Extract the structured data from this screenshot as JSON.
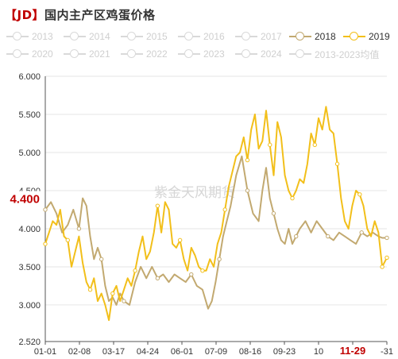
{
  "title_bracket": "【JD】",
  "title_text": "国内主产区鸡蛋价格",
  "legend": [
    {
      "label": "2013",
      "active": false,
      "color": "#d9d9d9"
    },
    {
      "label": "2014",
      "active": false,
      "color": "#d9d9d9"
    },
    {
      "label": "2015",
      "active": false,
      "color": "#d9d9d9"
    },
    {
      "label": "2016",
      "active": false,
      "color": "#d9d9d9"
    },
    {
      "label": "2017",
      "active": false,
      "color": "#d9d9d9"
    },
    {
      "label": "2018",
      "active": true,
      "color": "#c2a970"
    },
    {
      "label": "2019",
      "active": true,
      "color": "#f2bf1a"
    },
    {
      "label": "2020",
      "active": false,
      "color": "#d9d9d9"
    },
    {
      "label": "2021",
      "active": false,
      "color": "#d9d9d9"
    },
    {
      "label": "2022",
      "active": false,
      "color": "#d9d9d9"
    },
    {
      "label": "2023",
      "active": false,
      "color": "#d9d9d9"
    },
    {
      "label": "2024",
      "active": false,
      "color": "#d9d9d9"
    },
    {
      "label": "2013-2023均值",
      "active": false,
      "color": "#d9d9d9"
    }
  ],
  "watermark": "紫金天风期货",
  "chart_data": {
    "type": "line",
    "x_ticks": [
      "01-01",
      "02-08",
      "03-17",
      "04-24",
      "06-01",
      "07-09",
      "08-16",
      "09-23",
      "10",
      "11-29",
      "-31"
    ],
    "x_highlight": "11-29",
    "y_ticks": [
      "6.000",
      "5.500",
      "5.000",
      "4.500",
      "4.000",
      "3.500",
      "3.000",
      "2.520"
    ],
    "ylim": [
      2.52,
      6.0
    ],
    "xlim": [
      0,
      365
    ],
    "y_marker": {
      "label": "4.400",
      "value": 4.4
    },
    "grid": true,
    "series": [
      {
        "name": "2018",
        "color": "#c2a970",
        "x": [
          0,
          6,
          12,
          18,
          24,
          30,
          36,
          40,
          44,
          48,
          52,
          56,
          60,
          64,
          68,
          72,
          76,
          80,
          84,
          90,
          96,
          102,
          108,
          114,
          120,
          126,
          132,
          138,
          144,
          150,
          156,
          162,
          168,
          174,
          178,
          182,
          186,
          190,
          194,
          198,
          204,
          210,
          216,
          222,
          228,
          232,
          236,
          240,
          244,
          248,
          252,
          256,
          260,
          264,
          268,
          272,
          278,
          284,
          290,
          296,
          302,
          308,
          314,
          320,
          326,
          332,
          338,
          344,
          350,
          356,
          360,
          365
        ],
        "y": [
          4.25,
          4.35,
          4.2,
          3.95,
          4.05,
          4.25,
          4.0,
          4.4,
          4.3,
          3.9,
          3.6,
          3.75,
          3.6,
          3.25,
          3.05,
          3.1,
          3.0,
          3.15,
          3.05,
          3.0,
          3.3,
          3.5,
          3.35,
          3.5,
          3.35,
          3.4,
          3.3,
          3.4,
          3.35,
          3.3,
          3.4,
          3.25,
          3.2,
          2.95,
          3.05,
          3.3,
          3.6,
          3.9,
          4.1,
          4.3,
          4.7,
          4.95,
          4.5,
          4.2,
          4.1,
          4.5,
          4.8,
          4.4,
          4.2,
          4.0,
          3.85,
          3.8,
          4.0,
          3.8,
          3.9,
          4.0,
          4.1,
          3.95,
          4.1,
          4.0,
          3.9,
          3.85,
          3.95,
          3.9,
          3.85,
          3.8,
          3.95,
          3.9,
          3.95,
          3.9,
          3.88,
          3.88
        ]
      },
      {
        "name": "2019",
        "color": "#f2bf1a",
        "x": [
          0,
          4,
          8,
          12,
          16,
          20,
          24,
          28,
          32,
          36,
          40,
          44,
          48,
          52,
          56,
          60,
          64,
          68,
          72,
          76,
          80,
          84,
          88,
          92,
          96,
          100,
          104,
          108,
          112,
          116,
          120,
          124,
          128,
          132,
          136,
          140,
          144,
          148,
          152,
          156,
          160,
          164,
          168,
          172,
          176,
          180,
          184,
          188,
          192,
          196,
          200,
          204,
          208,
          212,
          216,
          220,
          224,
          228,
          232,
          236,
          240,
          244,
          248,
          252,
          256,
          260,
          264,
          268,
          272,
          276,
          280,
          284,
          288,
          292,
          296,
          300,
          304,
          308,
          312,
          316,
          320,
          324,
          328,
          332,
          336,
          340,
          344,
          348,
          352,
          356,
          360,
          365
        ],
        "y": [
          3.8,
          3.95,
          4.1,
          4.05,
          4.25,
          3.9,
          3.85,
          3.5,
          3.7,
          3.9,
          3.55,
          3.3,
          3.2,
          3.35,
          3.05,
          3.15,
          3.0,
          2.8,
          3.15,
          3.25,
          3.05,
          3.2,
          3.35,
          3.25,
          3.45,
          3.7,
          3.9,
          3.6,
          3.7,
          3.95,
          4.3,
          3.95,
          4.35,
          4.25,
          3.8,
          3.75,
          3.85,
          3.6,
          3.45,
          3.75,
          3.65,
          3.5,
          3.45,
          3.45,
          3.6,
          3.5,
          3.8,
          3.95,
          4.25,
          4.55,
          4.75,
          4.95,
          5.0,
          5.2,
          4.9,
          5.3,
          5.5,
          5.05,
          5.15,
          5.55,
          5.1,
          4.7,
          5.4,
          5.2,
          4.7,
          4.5,
          4.4,
          4.5,
          4.65,
          4.6,
          4.85,
          5.25,
          5.1,
          5.45,
          5.3,
          5.6,
          5.3,
          5.25,
          4.85,
          4.4,
          4.1,
          4.0,
          4.3,
          4.5,
          4.45,
          4.3,
          4.0,
          3.9,
          4.1,
          3.95,
          3.5,
          3.62
        ]
      }
    ]
  }
}
